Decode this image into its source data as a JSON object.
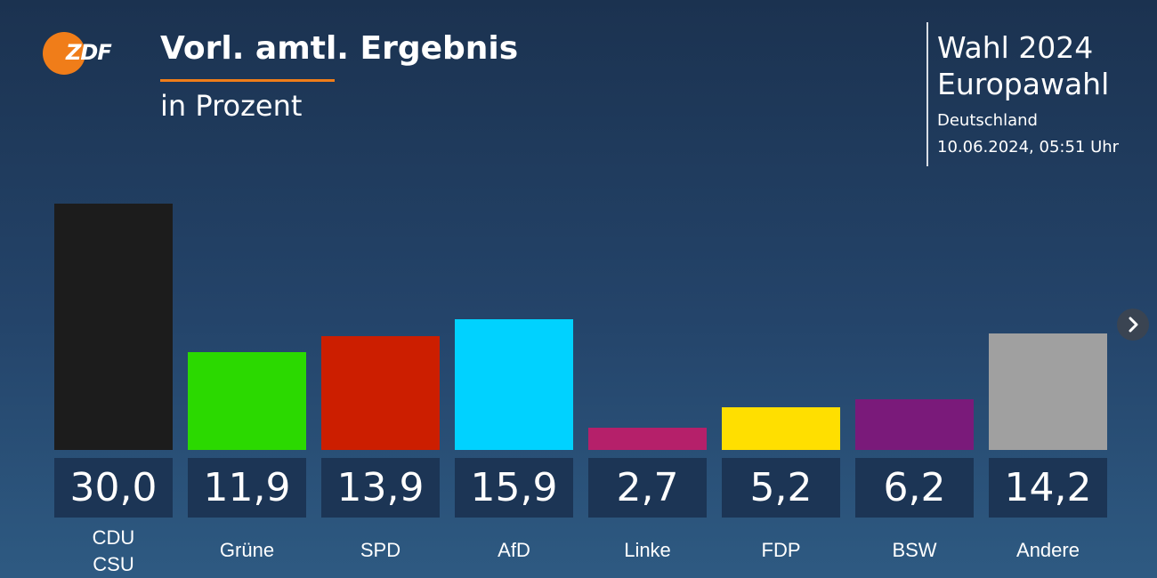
{
  "header": {
    "logo": "ZDF",
    "title": "Vorl. amtl. Ergebnis",
    "subtitle": "in Prozent"
  },
  "info": {
    "election": "Wahl 2024",
    "name": "Europawahl",
    "region": "Deutschland",
    "timestamp": "10.06.2024, 05:51 Uhr"
  },
  "chart_data": {
    "type": "bar",
    "categories": [
      "CDU\nCSU",
      "Grüne",
      "SPD",
      "AfD",
      "Linke",
      "FDP",
      "BSW",
      "Andere"
    ],
    "values": [
      30.0,
      11.9,
      13.9,
      15.9,
      2.7,
      5.2,
      6.2,
      14.2
    ],
    "value_labels": [
      "30,0",
      "11,9",
      "13,9",
      "15,9",
      "2,7",
      "5,2",
      "6,2",
      "14,2"
    ],
    "colors": [
      "#1c1c1c",
      "#2bd900",
      "#cc1e00",
      "#00d2ff",
      "#b5206a",
      "#ffdf00",
      "#7a1a7a",
      "#a0a0a0"
    ]
  }
}
